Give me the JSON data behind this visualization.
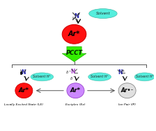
{
  "bg_color": "#ffffff",
  "top_circle_color": "#ff1111",
  "top_circle_label": "Ar*",
  "solvent_color": "#55eedd",
  "solvent_label": "Solvent",
  "solvent_label2": "Solvent H⁺",
  "arrow_color": "#33ee00",
  "arrow_edge_color": "#22aa00",
  "pcct_label": "PCCT",
  "le_circle_color": "#ff1111",
  "le_circle_label": "Ar*",
  "le_label": "Locally Excited State (LE)",
  "ex_circle_color": "#cc88ff",
  "ex_circle_label": "Ar*",
  "ex_label": "Exciplex (Ex)",
  "ip_circle_color": "#e0e0e0",
  "ip_circle_label": "Ar•⁻",
  "ip_label": "Ion Pair (IP)",
  "n_atom_color": "#2222aa",
  "bond_color": "#333333",
  "arrow_h_color": "#333333",
  "bracket_color": "#555555"
}
